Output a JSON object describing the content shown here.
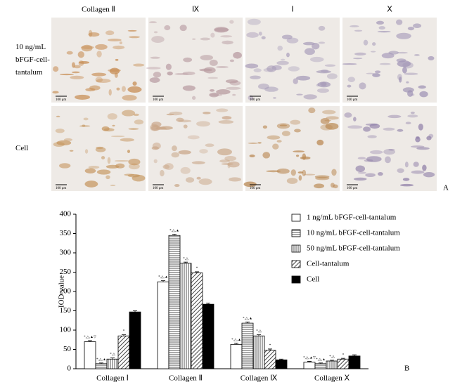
{
  "panel_a": {
    "columns": [
      "Collagen Ⅱ",
      "Ⅸ",
      "Ⅰ",
      "Ⅹ"
    ],
    "rows": [
      [
        "10 ng/mL",
        "bFGF-cell-",
        "tantalum"
      ],
      [
        "Cell"
      ]
    ],
    "scale_bars": [
      "100 μm",
      "100 μm",
      "100 μm",
      "100 μm",
      "100 μm",
      "100 μm",
      "100 μm",
      "100 μm"
    ],
    "letter": "A"
  },
  "chart_data": {
    "type": "bar",
    "letter": "B",
    "ylabel": "IOD value",
    "categories": [
      "Collagen Ⅰ",
      "Collagen Ⅱ",
      "Collagen Ⅸ",
      "Collagen Ⅹ"
    ],
    "ylim": [
      0,
      400
    ],
    "yticks": [
      0,
      50,
      100,
      150,
      200,
      250,
      300,
      350,
      400
    ],
    "legend": "upper right",
    "series": [
      {
        "name": "1 ng/mL bFGF-cell-tantalum",
        "color": "#ffffff",
        "pattern": "none",
        "values": [
          70,
          225,
          63,
          17
        ],
        "errors": [
          3,
          3,
          3,
          2
        ],
        "annotations": [
          "*,△,▲▽",
          "*,△,▲",
          "*,△,▲",
          "*,△,▲▽"
        ]
      },
      {
        "name": "10 ng/mL bFGF-cell-tantalum",
        "color": "#bbbbbb",
        "pattern": "horizontal",
        "values": [
          13,
          345,
          118,
          13
        ],
        "errors": [
          2,
          3,
          3,
          2
        ],
        "annotations": [
          "*,△,▲",
          "*,△,▲",
          "*,△,▲",
          "*,△,▲"
        ]
      },
      {
        "name": "50 ng/mL bFGF-cell-tantalum",
        "color": "#bbbbbb",
        "pattern": "vertical",
        "values": [
          25,
          273,
          85,
          20
        ],
        "errors": [
          3,
          3,
          3,
          2
        ],
        "annotations": [
          "*,△",
          "*,△",
          "*,△",
          "*,△"
        ]
      },
      {
        "name": "Cell-tantalum",
        "color": "#bbbbbb",
        "pattern": "diagonal",
        "values": [
          85,
          248,
          48,
          25
        ],
        "errors": [
          3,
          3,
          3,
          2
        ],
        "annotations": [
          "*",
          "*",
          "*",
          "*"
        ]
      },
      {
        "name": "Cell",
        "color": "#000000",
        "pattern": "solid",
        "values": [
          147,
          167,
          23,
          33
        ],
        "errors": [
          3,
          3,
          2,
          3
        ],
        "annotations": [
          null,
          null,
          null,
          null
        ]
      }
    ]
  }
}
